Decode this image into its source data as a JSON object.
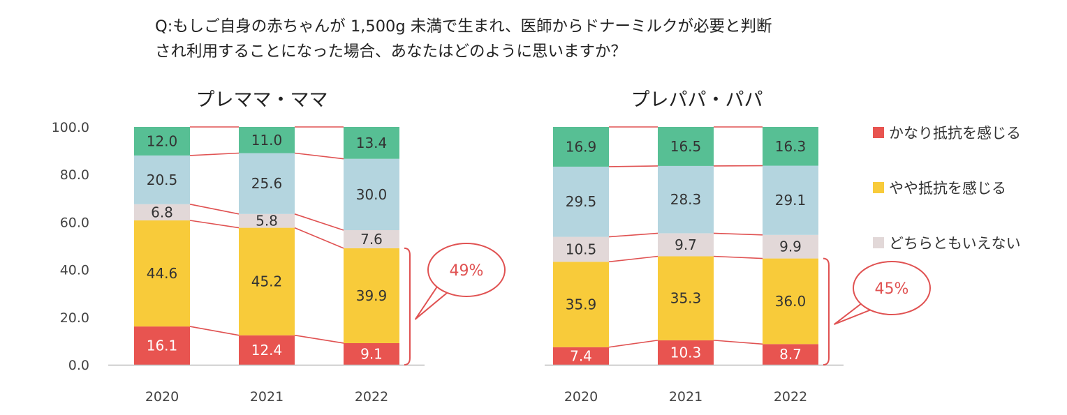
{
  "question": {
    "line1": "Q:もしご自身の赤ちゃんが 1,500g 未満で生まれ、医師からドナーミルクが必要と判断",
    "line2": "され利用することになった場合、あなたはどのように思いますか？"
  },
  "colors": {
    "strong": "#e85450",
    "some": "#f8cb3a",
    "neutral": "#e2d8d8",
    "little": "#b4d5df",
    "none": "#57bf94",
    "connector": "#e05252"
  },
  "legend": [
    {
      "label": "かなり抵抗を感じる",
      "color": "#e85450"
    },
    {
      "label": "やや抵抗を感じる",
      "color": "#f8cb3a"
    },
    {
      "label": "どちらともいえない",
      "color": "#e2d8d8"
    }
  ],
  "chart_data": [
    {
      "type": "bar",
      "stacked": true,
      "title": "プレママ・ママ",
      "categories": [
        "2020",
        "2021",
        "2022"
      ],
      "ylim": [
        0,
        100
      ],
      "yticks": [
        "0.0",
        "20.0",
        "40.0",
        "60.0",
        "80.0",
        "100.0"
      ],
      "series": [
        {
          "name": "かなり抵抗を感じる",
          "values": [
            16.1,
            12.4,
            9.1
          ]
        },
        {
          "name": "やや抵抗を感じる",
          "values": [
            44.6,
            45.2,
            39.9
          ]
        },
        {
          "name": "どちらともいえない",
          "values": [
            6.8,
            5.8,
            7.6
          ]
        },
        {
          "name": "",
          "values": [
            20.5,
            25.6,
            30.0
          ]
        },
        {
          "name": "",
          "values": [
            12.0,
            11.0,
            13.4
          ]
        }
      ],
      "labels": [
        [
          "16.1",
          "12.4",
          "9.1"
        ],
        [
          "44.6",
          "45.2",
          "39.9"
        ],
        [
          "6.8",
          "5.8",
          "7.6"
        ],
        [
          "20.5",
          "25.6",
          "30.0"
        ],
        [
          "12.0",
          "11.0",
          "13.4"
        ]
      ],
      "callout": "49%"
    },
    {
      "type": "bar",
      "stacked": true,
      "title": "プレパパ・パパ",
      "categories": [
        "2020",
        "2021",
        "2022"
      ],
      "ylim": [
        0,
        100
      ],
      "series": [
        {
          "name": "かなり抵抗を感じる",
          "values": [
            7.4,
            10.3,
            8.7
          ]
        },
        {
          "name": "やや抵抗を感じる",
          "values": [
            35.9,
            35.3,
            36.0
          ]
        },
        {
          "name": "どちらともいえない",
          "values": [
            10.5,
            9.7,
            9.9
          ]
        },
        {
          "name": "",
          "values": [
            29.5,
            28.3,
            29.1
          ]
        },
        {
          "name": "",
          "values": [
            16.9,
            16.5,
            16.3
          ]
        }
      ],
      "labels": [
        [
          "7.4",
          "10.3",
          "8.7"
        ],
        [
          "35.9",
          "35.3",
          "36.0"
        ],
        [
          "10.5",
          "9.7",
          "9.9"
        ],
        [
          "29.5",
          "28.3",
          "29.1"
        ],
        [
          "16.9",
          "16.5",
          "16.3"
        ]
      ],
      "callout": "45%"
    }
  ]
}
